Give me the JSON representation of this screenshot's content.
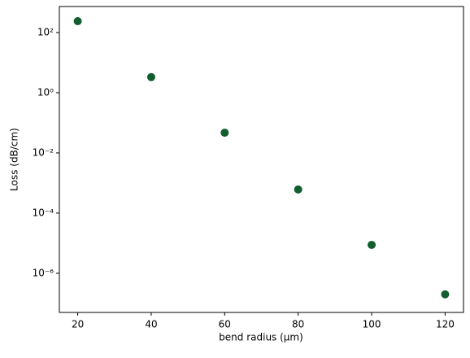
{
  "chart_data": {
    "type": "scatter",
    "x_label": "bend radius (μm)",
    "y_label": "Loss (dB/cm)",
    "x": [
      20,
      40,
      60,
      80,
      100,
      120
    ],
    "series": [
      {
        "color": "#125e2e",
        "values": [
          239,
          3.3,
          0.047,
          0.00061,
          8.8e-06,
          2e-07
        ]
      }
    ],
    "xlim": [
      15,
      125
    ],
    "xticks": [
      20,
      40,
      60,
      80,
      100,
      120
    ],
    "ylim": [
      5e-08,
      733
    ],
    "yscale": "log",
    "yticks": [
      {
        "value": 100,
        "label": "10²"
      },
      {
        "value": 1,
        "label": "10⁰"
      },
      {
        "value": 0.01,
        "label": "10⁻²"
      },
      {
        "value": 0.0001,
        "label": "10⁻⁴"
      },
      {
        "value": 1e-06,
        "label": "10⁻⁶"
      }
    ]
  }
}
